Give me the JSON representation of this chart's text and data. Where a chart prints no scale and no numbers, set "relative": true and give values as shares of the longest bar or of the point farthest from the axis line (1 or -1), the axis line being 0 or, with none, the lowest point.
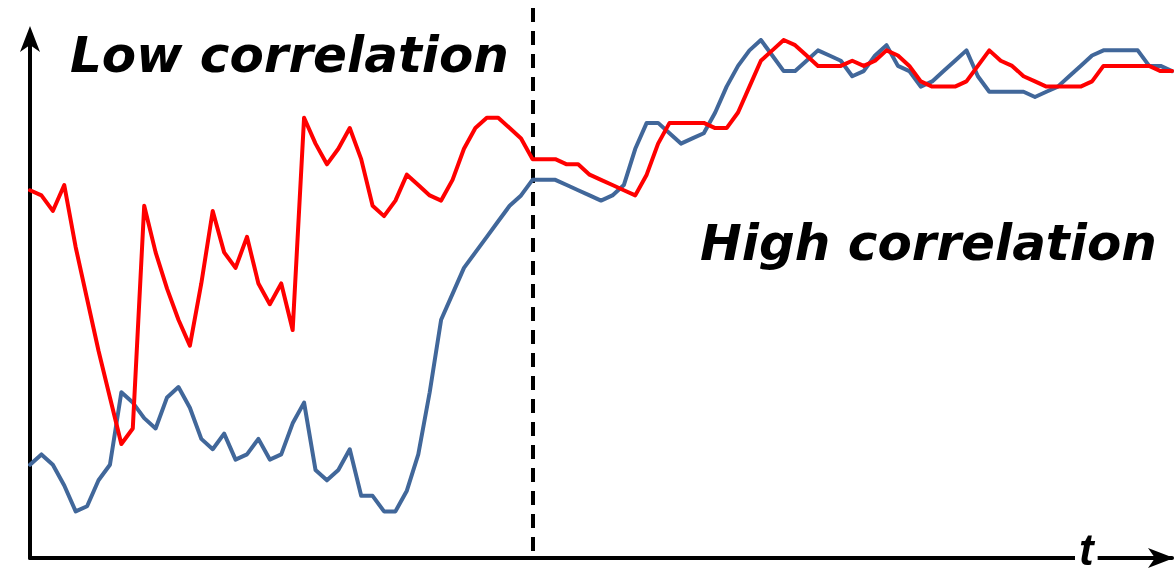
{
  "chart_data": {
    "type": "line",
    "relative": true,
    "xlabel": "t",
    "annotations": [
      "Low correlation",
      "High correlation"
    ],
    "categories": [
      null,
      null,
      null,
      null,
      null,
      null,
      null,
      null,
      null,
      null,
      null,
      null,
      null,
      null,
      null,
      null,
      null,
      null,
      null,
      null,
      null,
      null,
      null,
      null,
      null,
      null,
      null,
      null,
      null,
      null,
      null,
      null,
      null,
      null,
      null,
      null,
      null,
      null,
      null,
      null,
      null,
      null,
      null,
      null,
      null,
      null,
      null,
      null,
      null,
      null,
      null,
      null,
      null,
      null,
      null,
      null,
      null,
      null,
      null,
      null,
      null,
      null,
      null,
      null,
      null,
      null,
      null,
      null,
      null,
      null,
      null,
      null,
      null,
      null,
      null,
      null,
      null,
      null,
      null,
      null,
      null,
      null,
      null,
      null,
      null,
      null,
      null,
      null,
      null,
      null,
      null,
      null,
      null,
      null,
      null,
      null,
      null,
      null,
      null,
      null,
      null
    ],
    "series": [
      {
        "color": "#41679a",
        "values": [
          0.18,
          0.2,
          0.18,
          0.14,
          0.09,
          0.1,
          0.15,
          0.18,
          0.32,
          0.3,
          0.27,
          0.25,
          0.31,
          0.33,
          0.29,
          0.23,
          0.21,
          0.24,
          0.19,
          0.2,
          0.23,
          0.19,
          0.2,
          0.26,
          0.3,
          0.17,
          0.15,
          0.17,
          0.21,
          0.12,
          0.12,
          0.09,
          0.09,
          0.13,
          0.2,
          0.32,
          0.46,
          0.51,
          0.56,
          0.59,
          0.62,
          0.65,
          0.68,
          0.7,
          0.73,
          0.73,
          0.73,
          0.72,
          0.71,
          0.7,
          0.69,
          0.7,
          0.72,
          0.79,
          0.84,
          0.84,
          0.82,
          0.8,
          0.81,
          0.82,
          0.86,
          0.91,
          0.95,
          0.98,
          1,
          0.97,
          0.94,
          0.94,
          0.96,
          0.98,
          0.97,
          0.96,
          0.93,
          0.94,
          0.97,
          0.99,
          0.95,
          0.94,
          0.91,
          0.92,
          0.94,
          0.96,
          0.98,
          0.93,
          0.9,
          0.9,
          0.9,
          0.9,
          0.89,
          0.9,
          0.91,
          0.93,
          0.95,
          0.97,
          0.98,
          0.98,
          0.98,
          0.98,
          0.95,
          0.95,
          0.94
        ]
      },
      {
        "color": "#ff0000",
        "values": [
          0.71,
          0.7,
          0.67,
          0.72,
          0.6,
          0.5,
          0.4,
          0.31,
          0.22,
          0.25,
          0.68,
          0.59,
          0.52,
          0.46,
          0.41,
          0.53,
          0.67,
          0.59,
          0.56,
          0.62,
          0.53,
          0.49,
          0.53,
          0.44,
          0.85,
          0.8,
          0.76,
          0.79,
          0.83,
          0.77,
          0.68,
          0.66,
          0.69,
          0.74,
          0.72,
          0.7,
          0.69,
          0.73,
          0.79,
          0.83,
          0.85,
          0.85,
          0.83,
          0.81,
          0.77,
          0.77,
          0.77,
          0.76,
          0.76,
          0.74,
          0.73,
          0.72,
          0.71,
          0.7,
          0.74,
          0.8,
          0.84,
          0.84,
          0.84,
          0.84,
          0.83,
          0.83,
          0.86,
          0.91,
          0.96,
          0.98,
          1,
          0.99,
          0.97,
          0.95,
          0.95,
          0.95,
          0.96,
          0.95,
          0.96,
          0.98,
          0.97,
          0.95,
          0.92,
          0.91,
          0.91,
          0.91,
          0.92,
          0.95,
          0.98,
          0.96,
          0.95,
          0.93,
          0.92,
          0.91,
          0.91,
          0.91,
          0.91,
          0.92,
          0.95,
          0.95,
          0.95,
          0.95,
          0.95,
          0.94,
          0.94
        ]
      }
    ],
    "marker": "none",
    "line_style": "solid"
  }
}
